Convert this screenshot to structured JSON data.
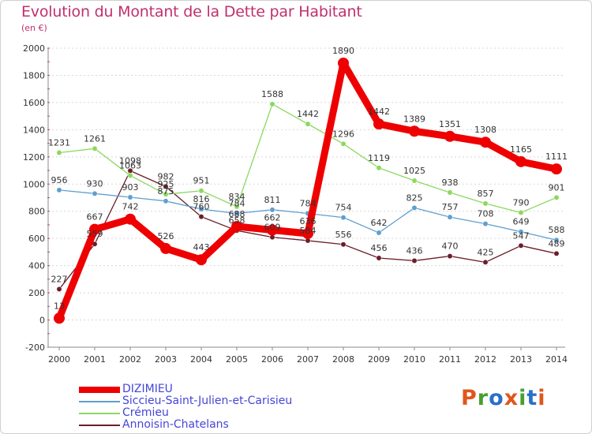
{
  "header": {
    "title": "Evolution du Montant de la Dette par Habitant",
    "subtitle": "(en €)"
  },
  "logo": {
    "text": [
      "P",
      "r",
      "o",
      "x",
      "i",
      "t",
      "i"
    ],
    "colors": [
      "#e0561c",
      "#4a9e2f",
      "#2a6fc9",
      "#e0561c",
      "#4a9e2f",
      "#2a6fc9",
      "#e0561c"
    ]
  },
  "chart_data": {
    "type": "line",
    "x": [
      "2000",
      "2001",
      "2002",
      "2003",
      "2004",
      "2005",
      "2006",
      "2007",
      "2008",
      "2009",
      "2010",
      "2011",
      "2012",
      "2013",
      "2014"
    ],
    "ylim": [
      -200,
      2000
    ],
    "yticks": [
      "-200",
      "0",
      "200",
      "400",
      "600",
      "800",
      "1000",
      "1200",
      "1400",
      "1600",
      "1800",
      "2000"
    ],
    "grid": "horizontal-dashed",
    "legend_position": "bottom-left",
    "series": [
      {
        "name": "DIZIMIEU",
        "color": "#ee0000",
        "values": [
          13,
          667,
          742,
          526,
          443,
          688,
          662,
          636,
          1890,
          1442,
          1389,
          1351,
          1308,
          1165,
          1111
        ],
        "labels": [
          "13",
          "667",
          "742",
          "526",
          "443",
          "688",
          "662",
          "636",
          "1890",
          "1442",
          "1389",
          "1351",
          "1308",
          "1165",
          "1111"
        ]
      },
      {
        "name": "Siccieu-Saint-Julien-et-Carisieu",
        "color": "#5f9fd0",
        "values": [
          956,
          930,
          903,
          875,
          816,
          784,
          811,
          784,
          754,
          642,
          825,
          757,
          708,
          649,
          588
        ],
        "labels": [
          "956",
          "930",
          "903",
          "875",
          "816",
          "784",
          "811",
          "784",
          "754",
          "642",
          "825",
          "757",
          "708",
          "649",
          "588"
        ]
      },
      {
        "name": "Crémieu",
        "color": "#8cd860",
        "values": [
          1231,
          1261,
          1063,
          925,
          951,
          834,
          1588,
          1442,
          1296,
          1119,
          1025,
          938,
          857,
          790,
          901
        ],
        "labels": [
          "1231",
          "1261",
          "1063",
          "925",
          "951",
          "834",
          "1588",
          "1442",
          "1296",
          "1119",
          "1025",
          "938",
          "857",
          "790",
          "901"
        ]
      },
      {
        "name": "Annoisin-Chatelans",
        "color": "#6a1e2a",
        "values": [
          227,
          559,
          1098,
          982,
          760,
          658,
          609,
          584,
          556,
          456,
          436,
          470,
          425,
          547,
          489
        ],
        "labels": [
          "227",
          "559",
          "1098",
          "982",
          "760",
          "658",
          "609",
          "584",
          "556",
          "456",
          "436",
          "470",
          "425",
          "547",
          "489"
        ]
      }
    ]
  }
}
